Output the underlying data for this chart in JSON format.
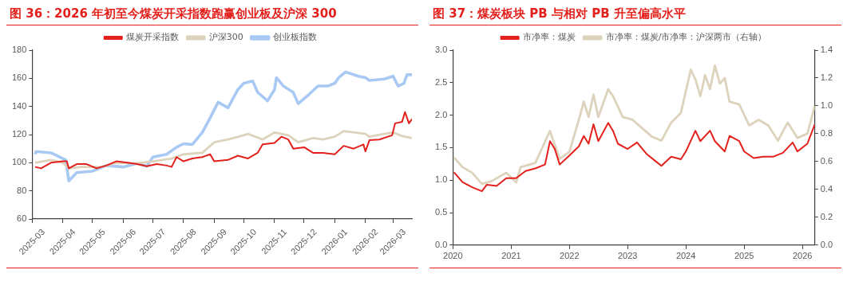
{
  "chart_data": [
    {
      "type": "line",
      "title": "图 36：2026 年初至今煤炭开采指数跑赢创业板及沪深 300",
      "legend": "top",
      "marker": "none",
      "xlim": [
        "2025-03-01",
        "2026-03-20"
      ],
      "xticks": [
        "2025-03",
        "2025-04",
        "2025-05",
        "2025-06",
        "2025-07",
        "2025-08",
        "2025-09",
        "2025-10",
        "2025-11",
        "2025-12",
        "2026-01",
        "2026-02",
        "2026-03"
      ],
      "ylim": [
        60,
        180
      ],
      "yticks": [
        60,
        80,
        100,
        120,
        140,
        160,
        180
      ],
      "series": [
        {
          "name": "煤炭开采指数",
          "color": "#e3201b",
          "x": [
            "2025-03-04",
            "2025-03-10",
            "2025-03-20",
            "2025-04-01",
            "2025-04-05",
            "2025-04-07",
            "2025-04-15",
            "2025-04-25",
            "2025-05-05",
            "2025-05-15",
            "2025-05-25",
            "2025-06-05",
            "2025-06-15",
            "2025-06-25",
            "2025-07-05",
            "2025-07-15",
            "2025-07-20",
            "2025-07-25",
            "2025-08-01",
            "2025-08-10",
            "2025-08-20",
            "2025-08-28",
            "2025-09-01",
            "2025-09-15",
            "2025-09-25",
            "2025-10-05",
            "2025-10-15",
            "2025-10-20",
            "2025-11-01",
            "2025-11-08",
            "2025-11-15",
            "2025-11-20",
            "2025-12-01",
            "2025-12-10",
            "2025-12-20",
            "2026-01-01",
            "2026-01-10",
            "2026-01-20",
            "2026-01-30",
            "2026-02-01",
            "2026-02-05",
            "2026-02-15",
            "2026-02-28",
            "2026-03-03",
            "2026-03-10",
            "2026-03-13",
            "2026-03-17",
            "2026-03-20"
          ],
          "values": [
            97,
            96,
            100,
            101,
            101,
            96,
            99,
            99,
            96,
            98,
            101,
            100,
            99,
            97.5,
            99,
            98,
            97,
            104,
            101,
            103,
            104,
            106,
            101,
            102,
            105,
            103,
            107,
            113,
            114,
            118.5,
            116.5,
            110,
            111,
            107,
            107,
            106,
            112,
            110,
            113,
            108,
            116,
            116.5,
            119.5,
            128,
            129,
            136,
            128,
            131
          ]
        },
        {
          "name": "沪深300",
          "color": "#ddd3bc",
          "x": [
            "2025-03-04",
            "2025-03-20",
            "2025-04-01",
            "2025-04-07",
            "2025-04-20",
            "2025-05-10",
            "2025-05-25",
            "2025-06-15",
            "2025-07-01",
            "2025-07-20",
            "2025-08-01",
            "2025-08-20",
            "2025-09-01",
            "2025-09-15",
            "2025-10-01",
            "2025-10-05",
            "2025-10-20",
            "2025-11-01",
            "2025-11-15",
            "2025-11-25",
            "2025-12-10",
            "2025-12-20",
            "2026-01-01",
            "2026-01-10",
            "2026-02-01",
            "2026-02-05",
            "2026-02-20",
            "2026-03-01",
            "2026-03-10",
            "2026-03-20"
          ],
          "values": [
            100,
            102,
            100,
            96,
            97,
            97,
            100,
            99.5,
            101,
            103,
            106,
            107,
            114.5,
            116.5,
            119.5,
            120.5,
            116.5,
            121.5,
            119.5,
            114.5,
            117.5,
            116.5,
            118.5,
            122.5,
            120.5,
            118.5,
            120.5,
            121.5,
            119,
            117.5
          ]
        },
        {
          "name": "创业板指数",
          "color": "#a9c9f5",
          "x": [
            "2025-03-04",
            "2025-03-05",
            "2025-03-20",
            "2025-04-01",
            "2025-04-04",
            "2025-04-07",
            "2025-04-15",
            "2025-05-01",
            "2025-05-15",
            "2025-06-01",
            "2025-06-15",
            "2025-06-25",
            "2025-07-01",
            "2025-07-15",
            "2025-07-25",
            "2025-08-01",
            "2025-08-10",
            "2025-08-20",
            "2025-08-28",
            "2025-09-05",
            "2025-09-15",
            "2025-09-25",
            "2025-10-01",
            "2025-10-10",
            "2025-10-15",
            "2025-10-25",
            "2025-11-01",
            "2025-11-03",
            "2025-11-10",
            "2025-11-20",
            "2025-11-25",
            "2025-12-05",
            "2025-12-15",
            "2025-12-25",
            "2026-01-01",
            "2026-01-05",
            "2026-01-12",
            "2026-01-25",
            "2026-02-01",
            "2026-02-05",
            "2026-02-20",
            "2026-03-01",
            "2026-03-06",
            "2026-03-12",
            "2026-03-15",
            "2026-03-20"
          ],
          "values": [
            106,
            108,
            107,
            103,
            102,
            87,
            93,
            94,
            98,
            97,
            99.5,
            97.5,
            104,
            106,
            111,
            113.5,
            113,
            121.5,
            132,
            143,
            139,
            152,
            156.5,
            158,
            150,
            144,
            152,
            160.5,
            154.5,
            150,
            142,
            148,
            154.5,
            154.5,
            156.5,
            160.5,
            164.5,
            161.5,
            160.5,
            158.5,
            159.5,
            161.5,
            154.5,
            156.5,
            162.5,
            162.5
          ]
        }
      ]
    },
    {
      "type": "line",
      "title": "图 37：煤炭板块 PB 与相对 PB 升至偏高水平",
      "legend": "top",
      "marker": "none",
      "xlim": [
        "2020-01-01",
        "2026-03-20"
      ],
      "xticks": [
        "2020",
        "2021",
        "2022",
        "2023",
        "2024",
        "2025",
        "2026"
      ],
      "ylim": [
        0,
        3
      ],
      "yticks": [
        {
          "value": 0,
          "label": "0.0"
        },
        {
          "value": 0.5,
          "label": "0.5"
        },
        {
          "value": 1,
          "label": "1.0"
        },
        {
          "value": 1.5,
          "label": "1.5"
        },
        {
          "value": 2,
          "label": "2.0"
        },
        {
          "value": 2.5,
          "label": "2.5"
        },
        {
          "value": 3,
          "label": "3.0"
        }
      ],
      "y2lim": [
        0,
        1.4
      ],
      "y2ticks": [
        {
          "value": 0,
          "label": "0.0"
        },
        0.2,
        0.4,
        0.6,
        0.8,
        {
          "value": 1,
          "label": "1.0"
        },
        1.2,
        1.4
      ],
      "series": [
        {
          "name": "市净率：煤炭",
          "color": "#e3201b",
          "x": [
            "2020-01-08",
            "2020-03",
            "2020-05",
            "2020-07",
            "2020-08",
            "2020-10",
            "2020-12",
            "2021-02",
            "2021-04",
            "2021-06",
            "2021-08",
            "2021-09",
            "2021-10",
            "2021-11",
            "2022-01",
            "2022-03",
            "2022-04",
            "2022-05",
            "2022-06",
            "2022-07",
            "2022-09",
            "2022-10",
            "2022-11",
            "2023-01",
            "2023-03",
            "2023-05",
            "2023-07",
            "2023-08",
            "2023-10",
            "2023-12",
            "2024-01",
            "2024-03",
            "2024-04",
            "2024-06",
            "2024-07",
            "2024-09",
            "2024-10",
            "2024-12",
            "2025-01",
            "2025-03",
            "2025-05",
            "2025-07",
            "2025-09",
            "2025-11",
            "2025-12",
            "2026-02",
            "2026-03-20"
          ],
          "values": [
            1.12,
            0.97,
            0.89,
            0.83,
            0.93,
            0.91,
            1.03,
            1.03,
            1.14,
            1.18,
            1.24,
            1.6,
            1.48,
            1.24,
            1.38,
            1.52,
            1.68,
            1.56,
            1.86,
            1.6,
            1.88,
            1.76,
            1.56,
            1.48,
            1.58,
            1.4,
            1.28,
            1.22,
            1.36,
            1.32,
            1.44,
            1.76,
            1.6,
            1.76,
            1.6,
            1.44,
            1.68,
            1.6,
            1.44,
            1.34,
            1.36,
            1.36,
            1.42,
            1.58,
            1.44,
            1.56,
            1.86
          ]
        },
        {
          "name": "市净率：煤炭/市净率：沪深两市（右轴）",
          "color": "#ddd3bc",
          "axis": "y2",
          "x": [
            "2020-01-08",
            "2020-03",
            "2020-05",
            "2020-07",
            "2020-09",
            "2020-12",
            "2021-02",
            "2021-03",
            "2021-06",
            "2021-09",
            "2021-11",
            "2022-01",
            "2022-03",
            "2022-04",
            "2022-05",
            "2022-06",
            "2022-07",
            "2022-09",
            "2022-10",
            "2022-12",
            "2023-02",
            "2023-04",
            "2023-06",
            "2023-08",
            "2023-10",
            "2023-12",
            "2024-02",
            "2024-03",
            "2024-04",
            "2024-05",
            "2024-06",
            "2024-07",
            "2024-08",
            "2024-09",
            "2024-10",
            "2024-12",
            "2025-02",
            "2025-04",
            "2025-06",
            "2025-08",
            "2025-10",
            "2025-12",
            "2026-02",
            "2026-03-20"
          ],
          "values": [
            0.63,
            0.56,
            0.52,
            0.44,
            0.46,
            0.52,
            0.45,
            0.56,
            0.59,
            0.82,
            0.62,
            0.67,
            0.9,
            1.03,
            0.92,
            1.08,
            0.92,
            1.12,
            1.07,
            0.92,
            0.9,
            0.84,
            0.78,
            0.75,
            0.88,
            0.95,
            1.26,
            1.19,
            1.07,
            1.22,
            1.12,
            1.29,
            1.16,
            1.2,
            1.03,
            1.01,
            0.86,
            0.9,
            0.86,
            0.75,
            0.88,
            0.77,
            0.8,
            1.0
          ]
        }
      ]
    }
  ]
}
